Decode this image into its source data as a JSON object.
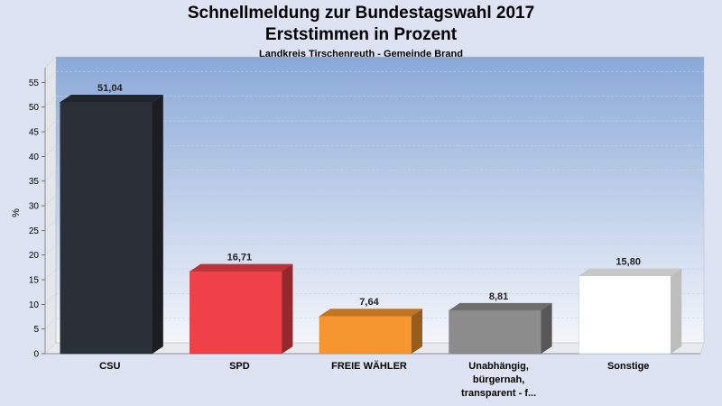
{
  "header": {
    "title_line1": "Schnellmeldung zur Bundestagswahl 2017",
    "title_line2": "Erststimmen in Prozent",
    "subtitle": "Landkreis Tirschenreuth - Gemeinde Brand"
  },
  "chart_data": {
    "type": "bar",
    "title": "Schnellmeldung zur Bundestagswahl 2017 Erststimmen in Prozent",
    "subtitle": "Landkreis Tirschenreuth - Gemeinde Brand",
    "ylabel": "%",
    "xlabel": "",
    "ylim": [
      0,
      58
    ],
    "yticks": [
      0,
      5,
      10,
      15,
      20,
      25,
      30,
      35,
      40,
      45,
      50,
      55
    ],
    "grid": true,
    "categories": [
      [
        "CSU"
      ],
      [
        "SPD"
      ],
      [
        "FREIE WÄHLER"
      ],
      [
        "Unabhängig,",
        "bürgernah,",
        "transparent - f..."
      ],
      [
        "Sonstige"
      ]
    ],
    "values": [
      51.04,
      16.71,
      7.64,
      8.81,
      15.8
    ],
    "value_labels": [
      "51,04",
      "16,71",
      "7,64",
      "8,81",
      "15,80"
    ],
    "colors": [
      "#2b2f38",
      "#f04048",
      "#f5962e",
      "#8c8c8c",
      "#ffffff"
    ]
  }
}
